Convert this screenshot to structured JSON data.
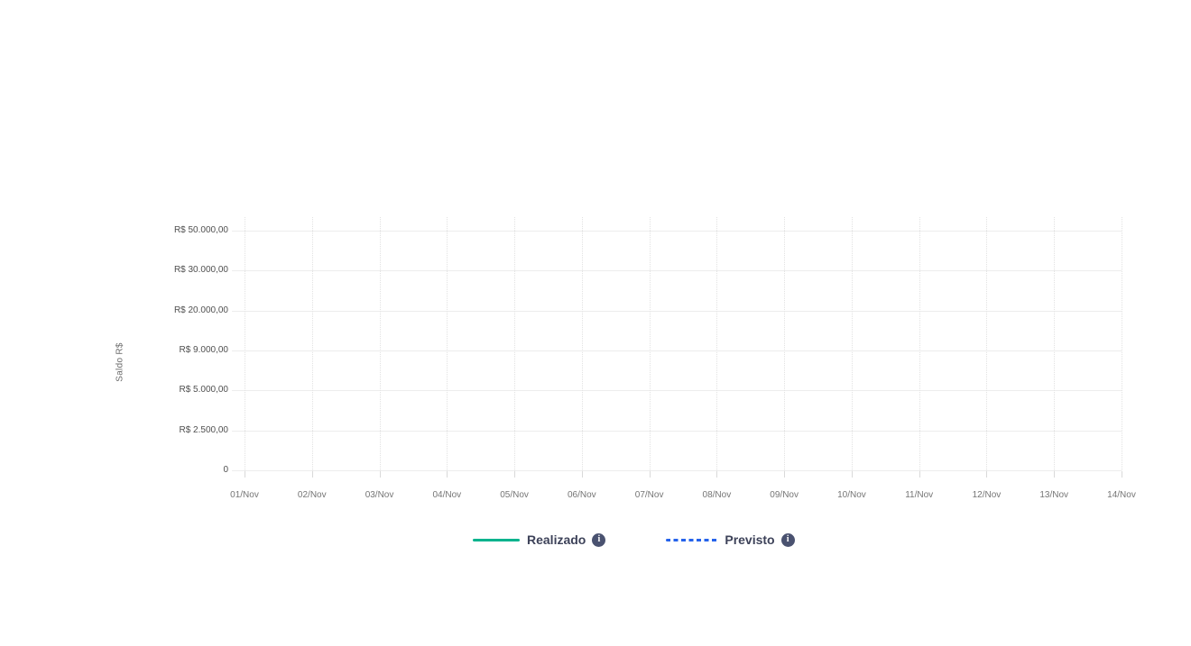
{
  "page": {
    "background": "#ffffff"
  },
  "icons": {
    "info_glyph": "i"
  },
  "colors": {
    "grid_horizontal": "#ededed",
    "grid_vertical": "#e2e2e2",
    "info_icon_bg": "#4a5270",
    "legend_text": "#3d4259"
  },
  "chart_data": {
    "type": "line",
    "title": "",
    "xlabel": "",
    "ylabel": "Saldo R$",
    "x_categories": [
      "01/Nov",
      "02/Nov",
      "03/Nov",
      "04/Nov",
      "05/Nov",
      "06/Nov",
      "07/Nov",
      "08/Nov",
      "09/Nov",
      "10/Nov",
      "11/Nov",
      "12/Nov",
      "13/Nov",
      "14/Nov"
    ],
    "y_ticks": [
      "R$ 50.000,00",
      "R$ 30.000,00",
      "R$ 20.000,00",
      "R$ 9.000,00",
      "R$ 5.000,00",
      "R$ 2.500,00",
      "0"
    ],
    "grid": true,
    "legend_position": "bottom",
    "series": [
      {
        "name": "Realizado",
        "line_style": "solid",
        "color": "#00b38d",
        "values": []
      },
      {
        "name": "Previsto",
        "line_style": "dashed",
        "color": "#2563eb",
        "values": []
      }
    ]
  }
}
